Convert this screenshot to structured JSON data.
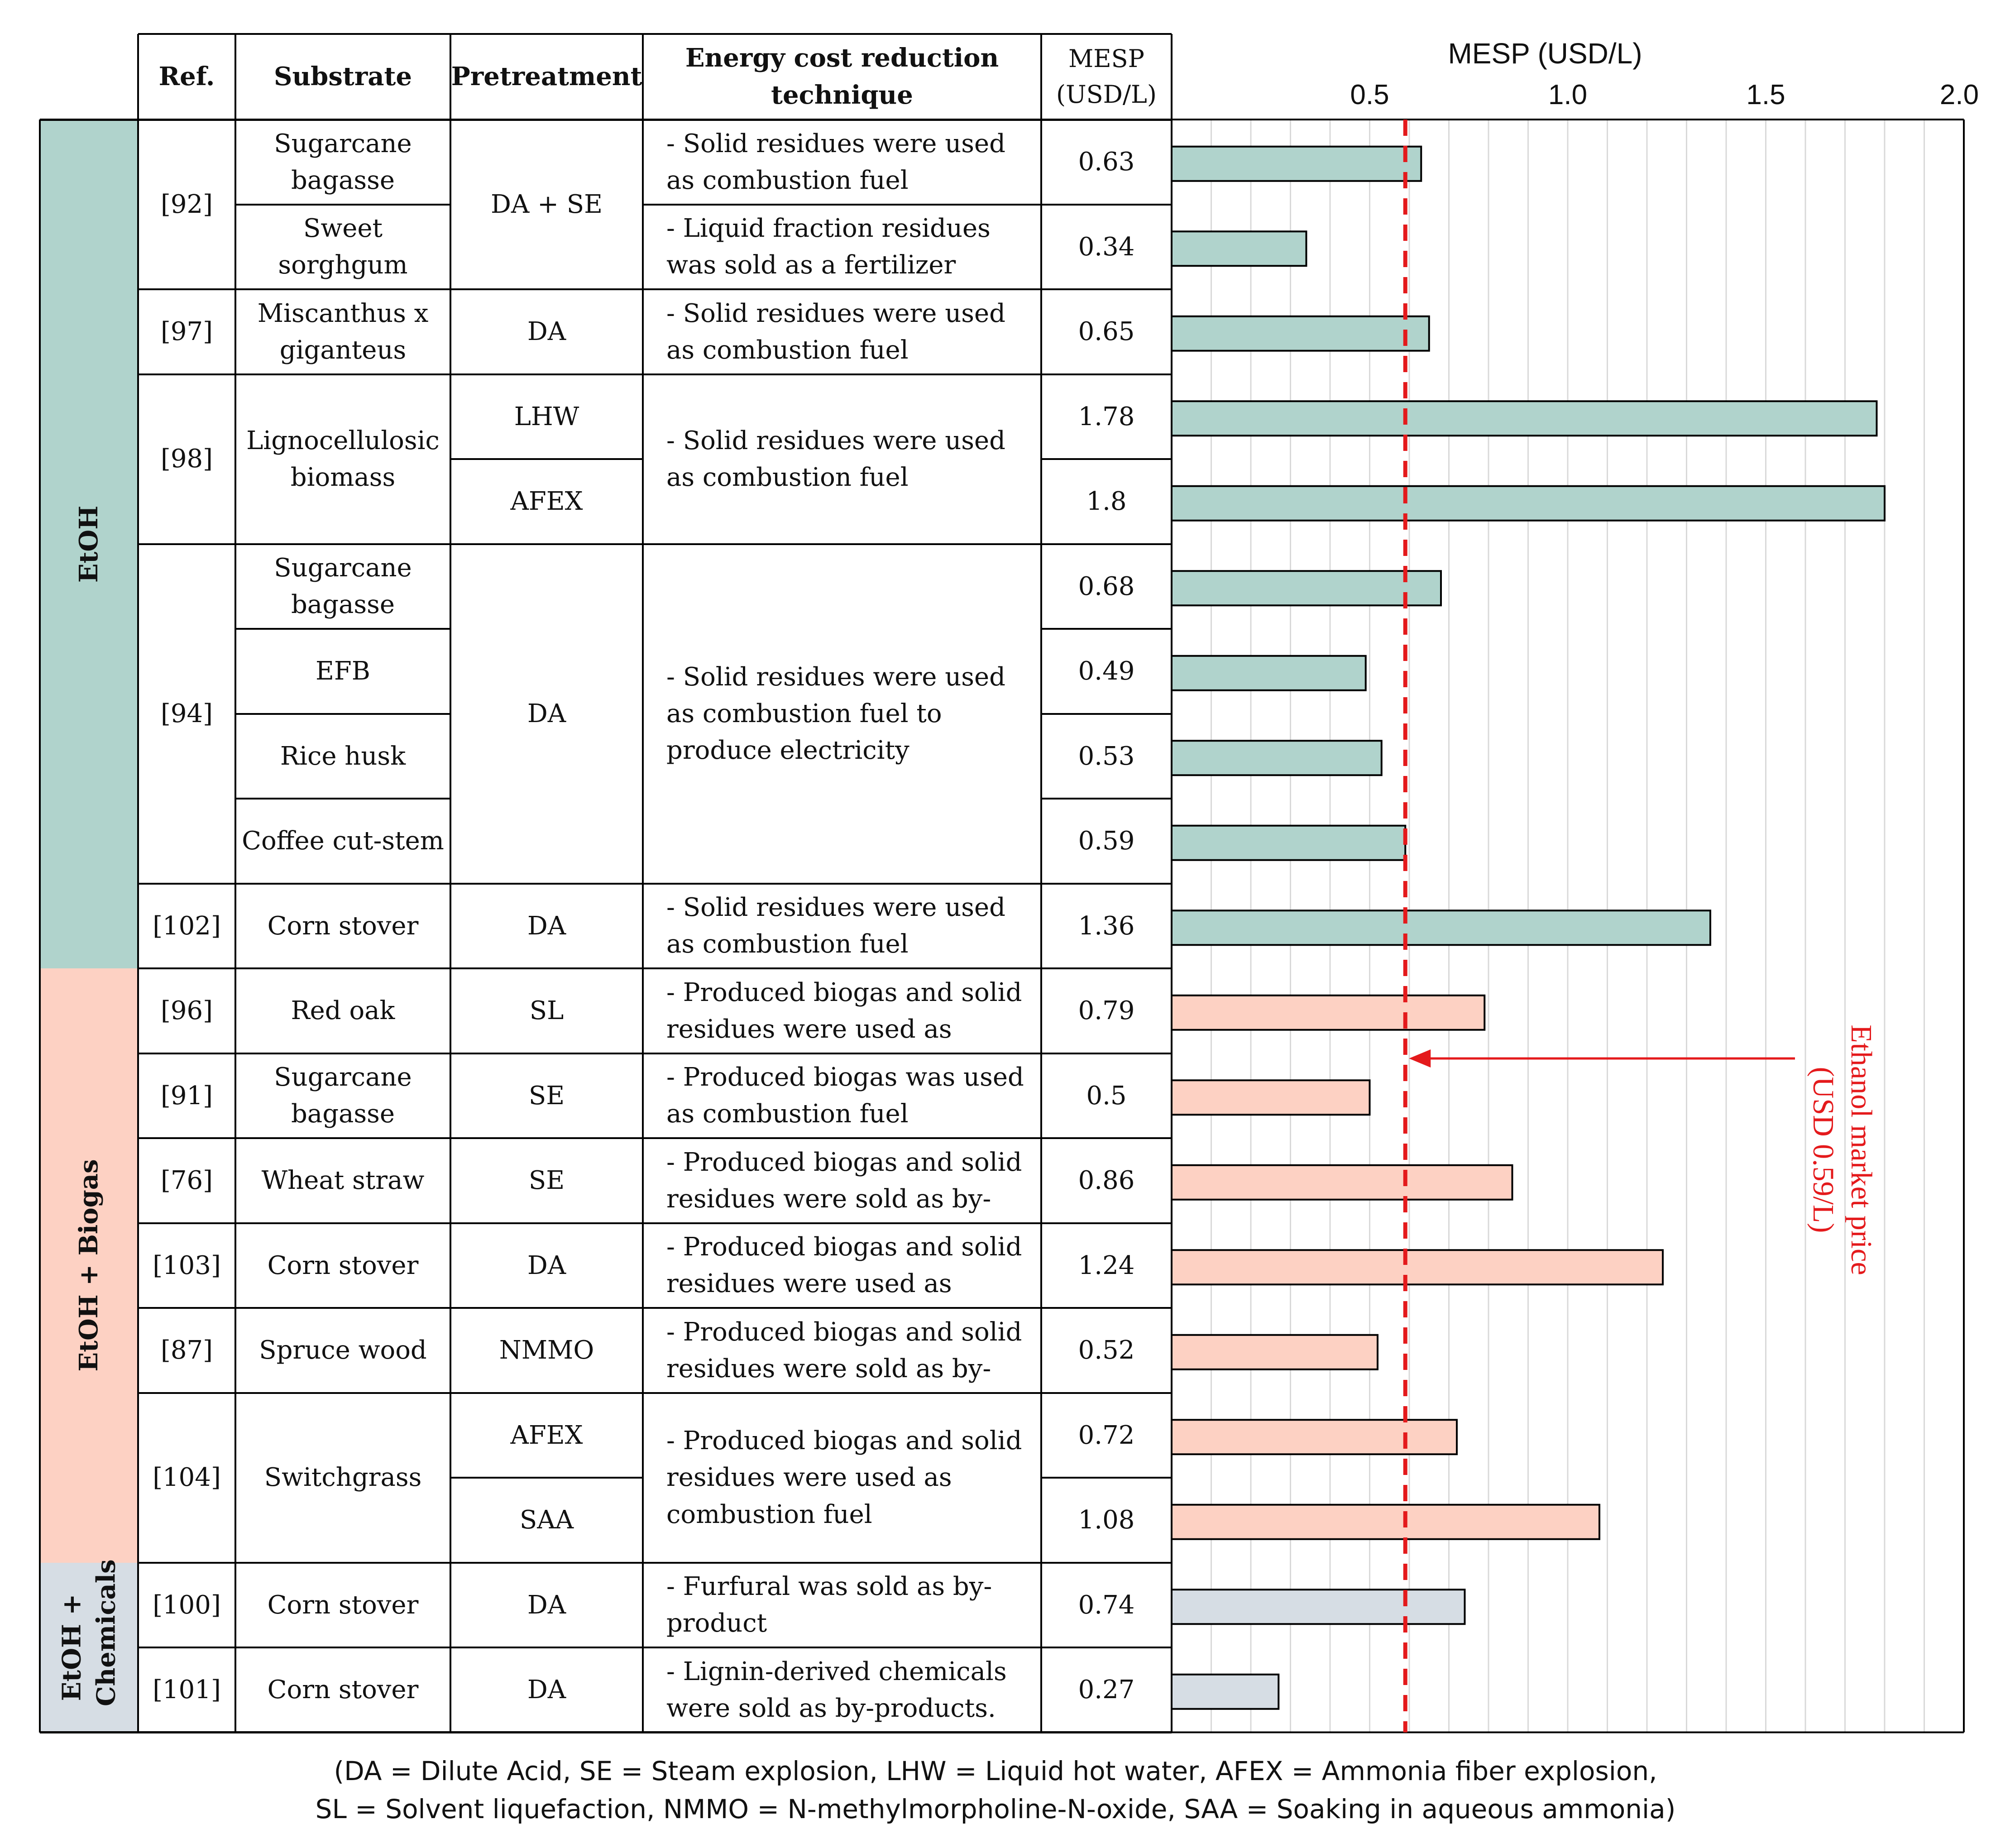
{
  "table": {
    "headers": {
      "ref": "Ref.",
      "substrate": "Substrate",
      "pretreatment": "Pretreatment",
      "technique": "Energy cost reduction technique",
      "mesp": "MESP (USD/L)"
    },
    "groups": [
      {
        "label": "EtOH",
        "color": "#b0d3cc"
      },
      {
        "label": "EtOH + Biogas",
        "color": "#fdd1c3"
      },
      {
        "label": "EtOH + Chemicals",
        "color": "#d6dde4"
      }
    ],
    "refs": [
      "[92]",
      "[97]",
      "[98]",
      "[94]",
      "[102]",
      "[96]",
      "[91]",
      "[76]",
      "[103]",
      "[87]",
      "[104]",
      "[100]",
      "[101]"
    ],
    "substrates": [
      "Sugarcane bagasse",
      "Sweet sorghgum",
      "Miscanthus x giganteus",
      "Lignocellulosic biomass",
      "Sugarcane bagasse",
      "EFB",
      "Rice husk",
      "Coffee cut-stem",
      "Corn stover",
      "Red oak",
      "Sugarcane bagasse",
      "Wheat straw",
      "Corn stover",
      "Spruce wood",
      "Switchgrass",
      "Corn stover",
      "Corn stover"
    ],
    "pretreatments": [
      "DA + SE",
      "DA",
      "LHW",
      "AFEX",
      "DA",
      "DA",
      "SL",
      "SE",
      "SE",
      "DA",
      "NMMO",
      "AFEX",
      "SAA",
      "DA",
      "DA"
    ],
    "techniques": [
      "- Solid residues were used as combustion fuel",
      "- Liquid fraction residues was sold as a fertilizer",
      "- Solid residues were used as combustion fuel",
      "- Solid residues were used as combustion fuel",
      "- Solid residues were used as combustion fuel to produce electricity",
      "- Solid residues were used as combustion fuel",
      "- Produced biogas and solid residues were used as",
      "- Produced biogas was used as combustion fuel",
      "- Produced biogas and solid residues were sold as by-",
      "- Produced biogas and solid residues were used as",
      "- Produced biogas and solid residues were sold as by-",
      "- Produced biogas and solid residues were used as combustion fuel",
      "- Furfural was sold as by-product",
      "- Lignin-derived chemicals were sold as by-products."
    ],
    "mesp_labels": [
      "0.63",
      "0.34",
      "0.65",
      "1.78",
      "1.8",
      "0.68",
      "0.49",
      "0.53",
      "0.59",
      "1.36",
      "0.79",
      "0.5",
      "0.86",
      "1.24",
      "0.52",
      "0.72",
      "1.08",
      "0.74",
      "0.27"
    ]
  },
  "chart_data": {
    "type": "bar",
    "orientation": "horizontal",
    "title": "MESP (USD/L)",
    "xlim": [
      0,
      2.0
    ],
    "xticks": [
      "0.5",
      "1.0",
      "1.5",
      "2.0"
    ],
    "values": [
      0.63,
      0.34,
      0.65,
      1.78,
      1.8,
      0.68,
      0.49,
      0.53,
      0.59,
      1.36,
      0.79,
      0.5,
      0.86,
      1.24,
      0.52,
      0.72,
      1.08,
      0.74,
      0.27
    ],
    "bar_groups": [
      0,
      0,
      0,
      0,
      0,
      0,
      0,
      0,
      0,
      0,
      1,
      1,
      1,
      1,
      1,
      1,
      1,
      2,
      2
    ],
    "reference_line": {
      "value": 0.59,
      "label_line1": "Ethanol market price",
      "label_line2": "(USD 0.59/L)",
      "color": "#e41a1c"
    }
  },
  "footer": {
    "line1": "(DA = Dilute Acid, SE = Steam explosion, LHW = Liquid hot water, AFEX = Ammonia fiber explosion,",
    "line2": "SL = Solvent liquefaction, NMMO = N-methylmorpholine-N-oxide, SAA = Soaking in aqueous ammonia)"
  }
}
